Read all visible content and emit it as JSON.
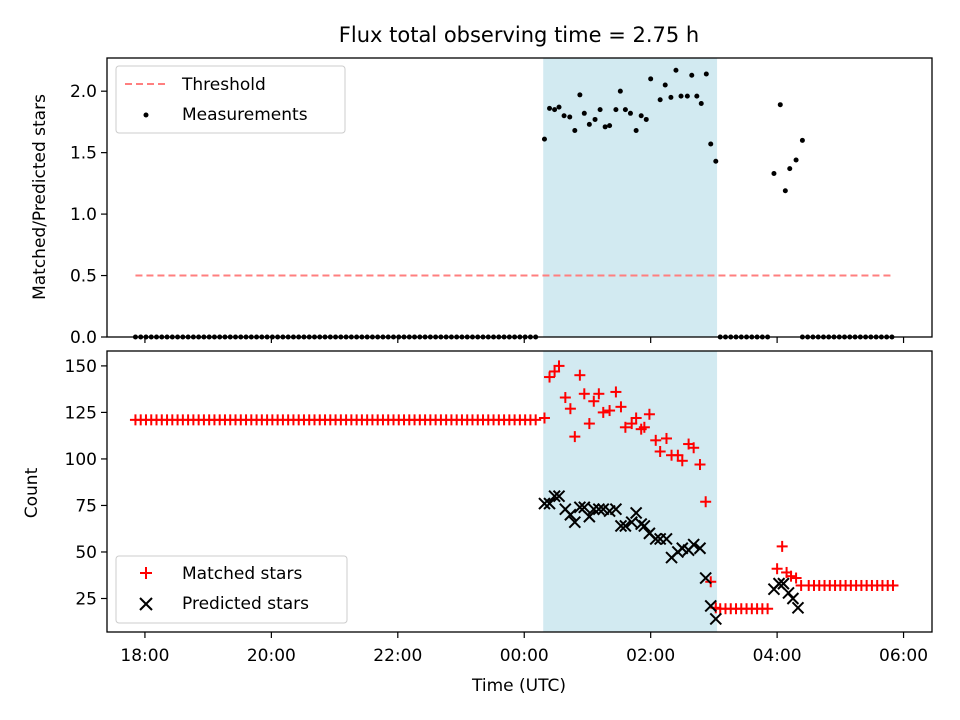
{
  "chart_data": {
    "title": "Flux total observing time = 2.75 h",
    "xlabel": "Time (UTC)",
    "xtick_labels": [
      "18:00",
      "20:00",
      "22:00",
      "00:00",
      "02:00",
      "04:00",
      "06:00"
    ],
    "xtick_hours": [
      18,
      20,
      22,
      24,
      26,
      28,
      30
    ],
    "xlim_hours": [
      17.4,
      30.45
    ],
    "shaded_span_hours": [
      24.3,
      27.05
    ],
    "shade_color": "#add8e6",
    "top": {
      "type": "scatter",
      "ylabel": "Matched/Predicted stars",
      "ylim": [
        0,
        2.27
      ],
      "yticks": [
        0.0,
        0.5,
        1.0,
        1.5,
        2.0
      ],
      "ytick_labels": [
        "0.0",
        "0.5",
        "1.0",
        "1.5",
        "2.0"
      ],
      "threshold": {
        "name": "Threshold",
        "y": 0.5,
        "x_range": [
          17.85,
          29.85
        ],
        "color": "#ff7f7f"
      },
      "measurements": {
        "name": "Measurements",
        "color": "#000000",
        "zero_segments": [
          [
            17.85,
            24.25
          ],
          [
            27.1,
            27.9
          ],
          [
            28.4,
            29.85
          ]
        ],
        "zero_step_hours": 0.0833,
        "points": [
          [
            24.32,
            1.61
          ],
          [
            24.4,
            1.86
          ],
          [
            24.48,
            1.85
          ],
          [
            24.55,
            1.87
          ],
          [
            24.63,
            1.8
          ],
          [
            24.72,
            1.79
          ],
          [
            24.8,
            1.68
          ],
          [
            24.88,
            1.97
          ],
          [
            24.95,
            1.82
          ],
          [
            25.03,
            1.73
          ],
          [
            25.12,
            1.77
          ],
          [
            25.2,
            1.85
          ],
          [
            25.28,
            1.71
          ],
          [
            25.35,
            1.72
          ],
          [
            25.45,
            1.85
          ],
          [
            25.52,
            2.0
          ],
          [
            25.6,
            1.85
          ],
          [
            25.68,
            1.82
          ],
          [
            25.77,
            1.68
          ],
          [
            25.85,
            1.8
          ],
          [
            25.93,
            1.77
          ],
          [
            26.0,
            2.1
          ],
          [
            26.15,
            1.93
          ],
          [
            26.23,
            2.05
          ],
          [
            26.32,
            1.95
          ],
          [
            26.4,
            2.17
          ],
          [
            26.48,
            1.96
          ],
          [
            26.58,
            1.96
          ],
          [
            26.65,
            2.13
          ],
          [
            26.73,
            1.96
          ],
          [
            26.8,
            1.9
          ],
          [
            26.88,
            2.14
          ],
          [
            26.95,
            1.57
          ],
          [
            27.03,
            1.43
          ],
          [
            27.95,
            1.33
          ],
          [
            28.05,
            1.89
          ],
          [
            28.13,
            1.19
          ],
          [
            28.2,
            1.37
          ],
          [
            28.3,
            1.44
          ],
          [
            28.4,
            1.6
          ]
        ]
      }
    },
    "bottom": {
      "type": "scatter",
      "ylabel": "Count",
      "ylim": [
        7,
        158
      ],
      "yticks": [
        25,
        50,
        75,
        100,
        125,
        150
      ],
      "ytick_labels": [
        "25",
        "50",
        "75",
        "100",
        "125",
        "150"
      ],
      "matched": {
        "name": "Matched stars",
        "color": "#ff0000",
        "flat_segments": [
          {
            "from": 17.85,
            "to": 24.25,
            "y": 121
          },
          {
            "from": 27.1,
            "to": 27.9,
            "y": 19.5
          },
          {
            "from": 28.5,
            "to": 29.85,
            "y": 32
          }
        ],
        "step_hours": 0.0833,
        "points": [
          [
            24.32,
            122
          ],
          [
            24.4,
            144
          ],
          [
            24.48,
            147
          ],
          [
            24.55,
            150
          ],
          [
            24.65,
            133
          ],
          [
            24.73,
            127
          ],
          [
            24.8,
            112
          ],
          [
            24.88,
            145
          ],
          [
            24.95,
            135
          ],
          [
            25.03,
            119
          ],
          [
            25.1,
            131
          ],
          [
            25.18,
            135
          ],
          [
            25.25,
            125
          ],
          [
            25.35,
            126
          ],
          [
            25.45,
            136
          ],
          [
            25.53,
            128
          ],
          [
            25.6,
            117
          ],
          [
            25.7,
            119
          ],
          [
            25.77,
            122
          ],
          [
            25.85,
            116
          ],
          [
            25.9,
            117
          ],
          [
            25.98,
            124
          ],
          [
            26.08,
            110
          ],
          [
            26.15,
            104
          ],
          [
            26.25,
            111
          ],
          [
            26.33,
            102
          ],
          [
            26.43,
            102
          ],
          [
            26.5,
            99
          ],
          [
            26.6,
            108
          ],
          [
            26.68,
            106
          ],
          [
            26.78,
            97
          ],
          [
            26.87,
            77
          ],
          [
            26.95,
            34
          ],
          [
            27.03,
            20
          ],
          [
            28.0,
            41
          ],
          [
            28.08,
            53
          ],
          [
            28.15,
            39
          ],
          [
            28.22,
            37
          ],
          [
            28.3,
            36
          ],
          [
            28.38,
            32
          ]
        ]
      },
      "predicted": {
        "name": "Predicted stars",
        "color": "#000000",
        "points": [
          [
            24.32,
            76
          ],
          [
            24.4,
            76
          ],
          [
            24.48,
            80
          ],
          [
            24.55,
            80
          ],
          [
            24.65,
            73
          ],
          [
            24.73,
            70
          ],
          [
            24.8,
            66
          ],
          [
            24.88,
            74
          ],
          [
            24.95,
            74
          ],
          [
            25.03,
            69
          ],
          [
            25.1,
            73
          ],
          [
            25.18,
            73
          ],
          [
            25.25,
            73
          ],
          [
            25.35,
            72
          ],
          [
            25.45,
            73
          ],
          [
            25.53,
            64
          ],
          [
            25.6,
            64
          ],
          [
            25.7,
            66
          ],
          [
            25.77,
            71
          ],
          [
            25.85,
            65
          ],
          [
            25.9,
            64
          ],
          [
            25.98,
            60
          ],
          [
            26.08,
            57
          ],
          [
            26.15,
            57
          ],
          [
            26.25,
            57
          ],
          [
            26.33,
            47
          ],
          [
            26.43,
            50
          ],
          [
            26.5,
            52
          ],
          [
            26.6,
            51
          ],
          [
            26.68,
            54
          ],
          [
            26.78,
            52
          ],
          [
            26.87,
            36
          ],
          [
            26.95,
            21
          ],
          [
            27.03,
            14
          ],
          [
            27.95,
            30
          ],
          [
            28.03,
            33
          ],
          [
            28.1,
            33
          ],
          [
            28.18,
            28
          ],
          [
            28.25,
            25
          ],
          [
            28.33,
            20
          ]
        ]
      }
    }
  }
}
